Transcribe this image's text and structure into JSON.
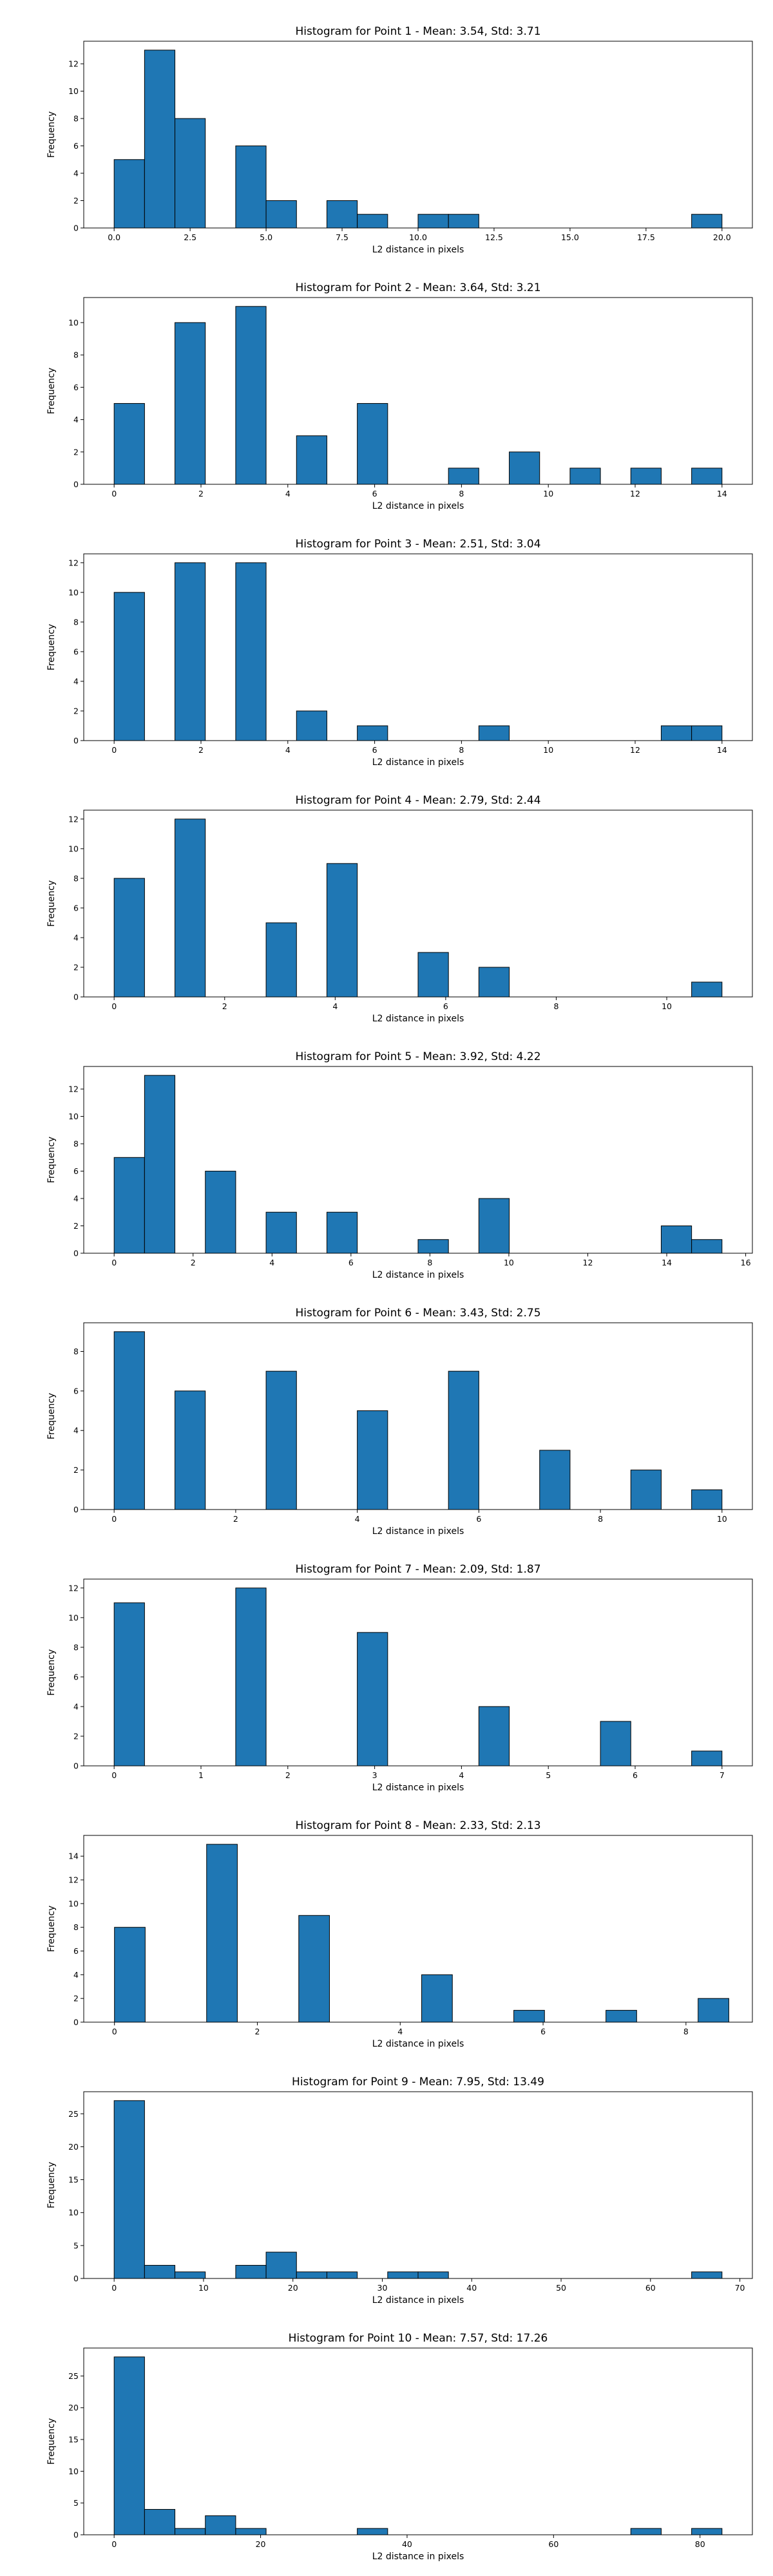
{
  "chart_data": [
    {
      "type": "bar",
      "title": "Histogram for Point 1 - Mean: 3.54, Std: 3.71",
      "xlabel": "L2 distance in pixels",
      "ylabel": "Frequency",
      "bar_color": "#1f77b4",
      "xlim": [
        -1,
        21
      ],
      "ylim": [
        0,
        13.65
      ],
      "xticks": [
        0,
        2.5,
        5,
        7.5,
        10,
        12.5,
        15,
        17.5,
        20
      ],
      "xtick_labels": [
        "0.0",
        "2.5",
        "5.0",
        "7.5",
        "10.0",
        "12.5",
        "15.0",
        "17.5",
        "20.0"
      ],
      "yticks": [
        0,
        2,
        4,
        6,
        8,
        10,
        12
      ],
      "bin_edges": [
        0,
        1,
        2,
        3,
        4,
        5,
        6,
        7,
        8,
        9,
        10,
        11,
        12,
        13,
        14,
        15,
        16,
        17,
        18,
        19,
        20
      ],
      "counts": [
        5,
        13,
        8,
        0,
        6,
        2,
        0,
        2,
        1,
        0,
        1,
        1,
        0,
        0,
        0,
        0,
        0,
        0,
        0,
        1
      ]
    },
    {
      "type": "bar",
      "title": "Histogram for Point 2 - Mean: 3.64, Std: 3.21",
      "xlabel": "L2 distance in pixels",
      "ylabel": "Frequency",
      "bar_color": "#1f77b4",
      "xlim": [
        -0.7,
        14.7
      ],
      "ylim": [
        0,
        11.55
      ],
      "xticks": [
        0,
        2,
        4,
        6,
        8,
        10,
        12,
        14
      ],
      "xtick_labels": [
        "0",
        "2",
        "4",
        "6",
        "8",
        "10",
        "12",
        "14"
      ],
      "yticks": [
        0,
        2,
        4,
        6,
        8,
        10
      ],
      "bin_edges": [
        0,
        0.7,
        1.4,
        2.1,
        2.8,
        3.5,
        4.2,
        4.9,
        5.6,
        6.3,
        7.0,
        7.7,
        8.4,
        9.1,
        9.8,
        10.5,
        11.2,
        11.9,
        12.6,
        13.3,
        14.0
      ],
      "counts": [
        5,
        0,
        10,
        0,
        11,
        0,
        3,
        0,
        5,
        0,
        0,
        1,
        0,
        2,
        0,
        1,
        0,
        1,
        0,
        1
      ]
    },
    {
      "type": "bar",
      "title": "Histogram for Point 3 - Mean: 2.51, Std: 3.04",
      "xlabel": "L2 distance in pixels",
      "ylabel": "Frequency",
      "bar_color": "#1f77b4",
      "xlim": [
        -0.7,
        14.7
      ],
      "ylim": [
        0,
        12.6
      ],
      "xticks": [
        0,
        2,
        4,
        6,
        8,
        10,
        12,
        14
      ],
      "xtick_labels": [
        "0",
        "2",
        "4",
        "6",
        "8",
        "10",
        "12",
        "14"
      ],
      "yticks": [
        0,
        2,
        4,
        6,
        8,
        10,
        12
      ],
      "bin_edges": [
        0,
        0.7,
        1.4,
        2.1,
        2.8,
        3.5,
        4.2,
        4.9,
        5.6,
        6.3,
        7.0,
        7.7,
        8.4,
        9.1,
        9.8,
        10.5,
        11.2,
        11.9,
        12.6,
        13.3,
        14.0
      ],
      "counts": [
        10,
        0,
        12,
        0,
        12,
        0,
        2,
        0,
        1,
        0,
        0,
        0,
        1,
        0,
        0,
        0,
        0,
        0,
        1,
        1
      ]
    },
    {
      "type": "bar",
      "title": "Histogram for Point 4 - Mean: 2.79, Std: 2.44",
      "xlabel": "L2 distance in pixels",
      "ylabel": "Frequency",
      "bar_color": "#1f77b4",
      "xlim": [
        -0.55,
        11.55
      ],
      "ylim": [
        0,
        12.6
      ],
      "xticks": [
        0,
        2,
        4,
        6,
        8,
        10
      ],
      "xtick_labels": [
        "0",
        "2",
        "4",
        "6",
        "8",
        "10"
      ],
      "yticks": [
        0,
        2,
        4,
        6,
        8,
        10,
        12
      ],
      "bin_edges": [
        0,
        0.55,
        1.1,
        1.65,
        2.2,
        2.75,
        3.3,
        3.85,
        4.4,
        4.95,
        5.5,
        6.05,
        6.6,
        7.15,
        7.7,
        8.25,
        8.8,
        9.35,
        9.9,
        10.45,
        11.0
      ],
      "counts": [
        8,
        0,
        12,
        0,
        0,
        5,
        0,
        9,
        0,
        0,
        3,
        0,
        2,
        0,
        0,
        0,
        0,
        0,
        0,
        1
      ]
    },
    {
      "type": "bar",
      "title": "Histogram for Point 5 - Mean: 3.92, Std: 4.22",
      "xlabel": "L2 distance in pixels",
      "ylabel": "Frequency",
      "bar_color": "#1f77b4",
      "xlim": [
        -0.77,
        16.17
      ],
      "ylim": [
        0,
        13.65
      ],
      "xticks": [
        0,
        2,
        4,
        6,
        8,
        10,
        12,
        14,
        16
      ],
      "xtick_labels": [
        "0",
        "2",
        "4",
        "6",
        "8",
        "10",
        "12",
        "14",
        "16"
      ],
      "yticks": [
        0,
        2,
        4,
        6,
        8,
        10,
        12
      ],
      "bin_edges": [
        0,
        0.77,
        1.54,
        2.31,
        3.08,
        3.85,
        4.62,
        5.39,
        6.16,
        6.93,
        7.7,
        8.47,
        9.24,
        10.01,
        10.78,
        11.55,
        12.32,
        13.09,
        13.86,
        14.63,
        15.4
      ],
      "counts": [
        7,
        13,
        0,
        6,
        0,
        3,
        0,
        3,
        0,
        0,
        1,
        0,
        4,
        0,
        0,
        0,
        0,
        0,
        2,
        1
      ]
    },
    {
      "type": "bar",
      "title": "Histogram for Point 6 - Mean: 3.43, Std: 2.75",
      "xlabel": "L2 distance in pixels",
      "ylabel": "Frequency",
      "bar_color": "#1f77b4",
      "xlim": [
        -0.5,
        10.5
      ],
      "ylim": [
        0,
        9.45
      ],
      "xticks": [
        0,
        2,
        4,
        6,
        8,
        10
      ],
      "xtick_labels": [
        "0",
        "2",
        "4",
        "6",
        "8",
        "10"
      ],
      "yticks": [
        0,
        2,
        4,
        6,
        8
      ],
      "bin_edges": [
        0,
        0.5,
        1.0,
        1.5,
        2.0,
        2.5,
        3.0,
        3.5,
        4.0,
        4.5,
        5.0,
        5.5,
        6.0,
        6.5,
        7.0,
        7.5,
        8.0,
        8.5,
        9.0,
        9.5,
        10.0
      ],
      "counts": [
        9,
        0,
        6,
        0,
        0,
        7,
        0,
        0,
        5,
        0,
        0,
        7,
        0,
        0,
        3,
        0,
        0,
        2,
        0,
        1
      ]
    },
    {
      "type": "bar",
      "title": "Histogram for Point 7 - Mean: 2.09, Std: 1.87",
      "xlabel": "L2 distance in pixels",
      "ylabel": "Frequency",
      "bar_color": "#1f77b4",
      "xlim": [
        -0.35,
        7.35
      ],
      "ylim": [
        0,
        12.6
      ],
      "xticks": [
        0,
        1,
        2,
        3,
        4,
        5,
        6,
        7
      ],
      "xtick_labels": [
        "0",
        "1",
        "2",
        "3",
        "4",
        "5",
        "6",
        "7"
      ],
      "yticks": [
        0,
        2,
        4,
        6,
        8,
        10,
        12
      ],
      "bin_edges": [
        0,
        0.35,
        0.7,
        1.05,
        1.4,
        1.75,
        2.1,
        2.45,
        2.8,
        3.15,
        3.5,
        3.85,
        4.2,
        4.55,
        4.9,
        5.25,
        5.6,
        5.95,
        6.3,
        6.65,
        7.0
      ],
      "counts": [
        11,
        0,
        0,
        0,
        12,
        0,
        0,
        0,
        9,
        0,
        0,
        0,
        4,
        0,
        0,
        0,
        3,
        0,
        0,
        1
      ]
    },
    {
      "type": "bar",
      "title": "Histogram for Point 8 - Mean: 2.33, Std: 2.13",
      "xlabel": "L2 distance in pixels",
      "ylabel": "Frequency",
      "bar_color": "#1f77b4",
      "xlim": [
        -0.43,
        8.93
      ],
      "ylim": [
        0,
        15.75
      ],
      "xticks": [
        0,
        2,
        4,
        6,
        8
      ],
      "xtick_labels": [
        "0",
        "2",
        "4",
        "6",
        "8"
      ],
      "yticks": [
        0,
        2,
        4,
        6,
        8,
        10,
        12,
        14
      ],
      "bin_edges": [
        0,
        0.43,
        0.86,
        1.29,
        1.72,
        2.15,
        2.58,
        3.01,
        3.44,
        3.87,
        4.3,
        4.73,
        5.16,
        5.59,
        6.02,
        6.45,
        6.88,
        7.31,
        7.74,
        8.17,
        8.6
      ],
      "counts": [
        8,
        0,
        0,
        15,
        0,
        0,
        9,
        0,
        0,
        0,
        4,
        0,
        0,
        1,
        0,
        0,
        1,
        0,
        0,
        2
      ]
    },
    {
      "type": "bar",
      "title": "Histogram for Point 9 - Mean: 7.95, Std: 13.49",
      "xlabel": "L2 distance in pixels",
      "ylabel": "Frequency",
      "bar_color": "#1f77b4",
      "xlim": [
        -3.4,
        71.4
      ],
      "ylim": [
        0,
        28.35
      ],
      "xticks": [
        0,
        10,
        20,
        30,
        40,
        50,
        60,
        70
      ],
      "xtick_labels": [
        "0",
        "10",
        "20",
        "30",
        "40",
        "50",
        "60",
        "70"
      ],
      "yticks": [
        0,
        5,
        10,
        15,
        20,
        25
      ],
      "bin_edges": [
        0,
        3.4,
        6.8,
        10.2,
        13.6,
        17.0,
        20.4,
        23.8,
        27.2,
        30.6,
        34.0,
        37.4,
        40.8,
        44.2,
        47.6,
        51.0,
        54.4,
        57.8,
        61.2,
        64.6,
        68.0
      ],
      "counts": [
        27,
        2,
        1,
        0,
        2,
        4,
        1,
        1,
        0,
        1,
        1,
        0,
        0,
        0,
        0,
        0,
        0,
        0,
        0,
        1
      ]
    },
    {
      "type": "bar",
      "title": "Histogram for Point 10 - Mean: 7.57, Std: 17.26",
      "xlabel": "L2 distance in pixels",
      "ylabel": "Frequency",
      "bar_color": "#1f77b4",
      "xlim": [
        -4.15,
        87.15
      ],
      "ylim": [
        0,
        29.4
      ],
      "xticks": [
        0,
        20,
        40,
        60,
        80
      ],
      "xtick_labels": [
        "0",
        "20",
        "40",
        "60",
        "80"
      ],
      "yticks": [
        0,
        5,
        10,
        15,
        20,
        25
      ],
      "bin_edges": [
        0,
        4.15,
        8.3,
        12.45,
        16.6,
        20.75,
        24.9,
        29.05,
        33.2,
        37.35,
        41.5,
        45.65,
        49.8,
        53.95,
        58.1,
        62.25,
        66.4,
        70.55,
        74.7,
        78.85,
        83.0
      ],
      "counts": [
        28,
        4,
        1,
        3,
        1,
        0,
        0,
        0,
        1,
        0,
        0,
        0,
        0,
        0,
        0,
        0,
        0,
        1,
        0,
        1
      ]
    }
  ]
}
